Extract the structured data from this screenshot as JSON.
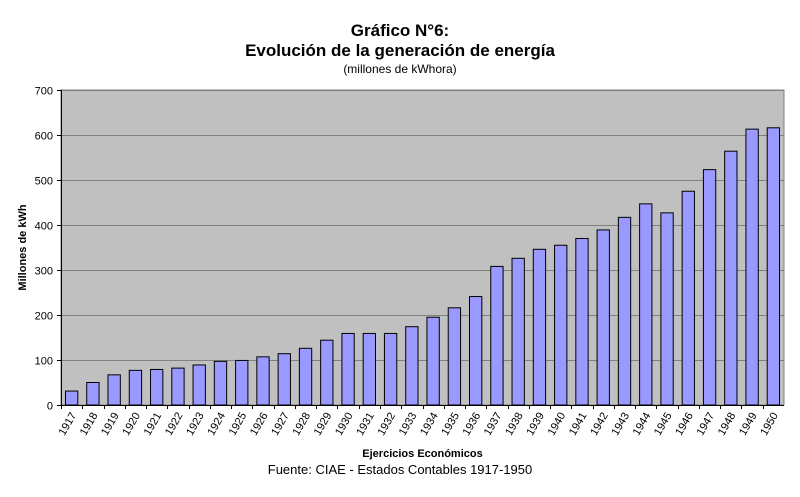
{
  "chart_data": {
    "type": "bar",
    "title": "Gráfico N°6:",
    "subtitle": "Evolución de la generación de energía",
    "unit_note": "(millones de kWhora)",
    "xlabel": "Ejercicios Económicos",
    "ylabel": "Millones de kWh",
    "ylim": [
      0,
      700
    ],
    "yticks": [
      0,
      100,
      200,
      300,
      400,
      500,
      600,
      700
    ],
    "grid": true,
    "legend": "none",
    "categories": [
      "1917",
      "1918",
      "1919",
      "1920",
      "1921",
      "1922",
      "1923",
      "1924",
      "1925",
      "1926",
      "1927",
      "1928",
      "1929",
      "1930",
      "1931",
      "1932",
      "1933",
      "1934",
      "1935",
      "1936",
      "1937",
      "1938",
      "1939",
      "1940",
      "1941",
      "1942",
      "1943",
      "1944",
      "1945",
      "1946",
      "1947",
      "1948",
      "1949",
      "1950"
    ],
    "values": [
      31,
      50,
      67,
      77,
      79,
      82,
      89,
      97,
      99,
      107,
      114,
      126,
      144,
      159,
      159,
      159,
      174,
      195,
      216,
      241,
      308,
      326,
      346,
      355,
      370,
      389,
      417,
      447,
      427,
      475,
      523,
      564,
      613,
      616
    ],
    "colors": {
      "plot_background": "#c0c0c0",
      "bar_fill": "#9999ff",
      "bar_stroke": "#000000",
      "gridline": "#808080"
    }
  },
  "footer": {
    "source": "Fuente: CIAE - Estados Contables 1917-1950"
  }
}
